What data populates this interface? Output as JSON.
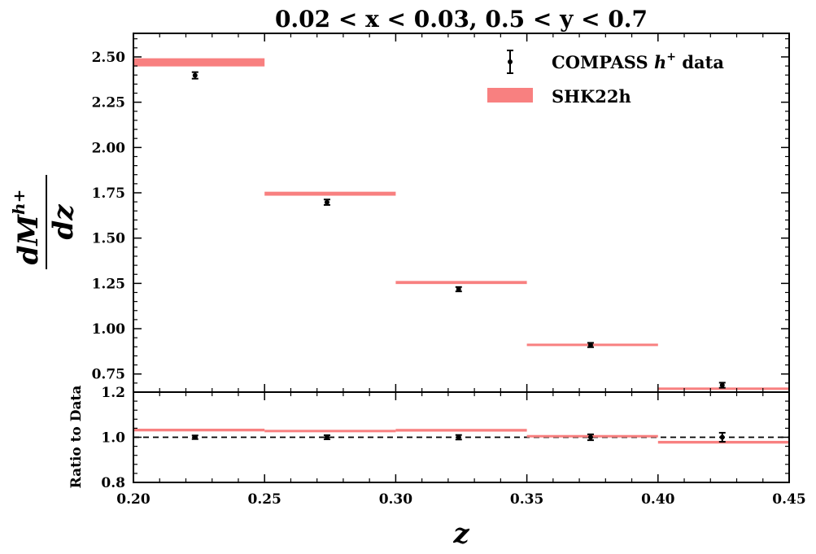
{
  "chart_data": [
    {
      "type": "line",
      "title": "0.02 < x < 0.03, 0.5 < y < 0.7",
      "ylabel": "dM^{h+}/dz",
      "xlim": [
        0.2,
        0.45
      ],
      "ylim": [
        0.65,
        2.63
      ],
      "yticks": [
        "0.75",
        "1.00",
        "1.25",
        "1.50",
        "1.75",
        "2.00",
        "2.25",
        "2.50"
      ],
      "grid": false,
      "legend": {
        "placement": "top-right",
        "entries": [
          "COMPASS h+ data",
          "SHK22h"
        ]
      },
      "series": [
        {
          "name": "COMPASS h+ data",
          "kind": "errorbar",
          "color": "#000000",
          "x": [
            0.2235,
            0.2738,
            0.324,
            0.3743,
            0.4245
          ],
          "y": [
            2.398,
            1.698,
            1.218,
            0.91,
            0.688
          ],
          "yerr": [
            0.018,
            0.015,
            0.012,
            0.012,
            0.014
          ]
        },
        {
          "name": "SHK22h",
          "kind": "band",
          "color": "#f88080",
          "bins": [
            [
              0.2,
              0.25
            ],
            [
              0.25,
              0.3
            ],
            [
              0.3,
              0.35
            ],
            [
              0.35,
              0.4
            ],
            [
              0.4,
              0.45
            ]
          ],
          "y": [
            2.47,
            1.745,
            1.255,
            0.912,
            0.67
          ],
          "thickness": [
            0.045,
            0.022,
            0.017,
            0.011,
            0.011
          ]
        }
      ]
    },
    {
      "type": "line",
      "ylabel": "Ratio to Data",
      "xlabel": "z",
      "xlim": [
        0.2,
        0.45
      ],
      "ylim": [
        0.8,
        1.2
      ],
      "xticks": [
        "0.20",
        "0.25",
        "0.30",
        "0.35",
        "0.40",
        "0.45"
      ],
      "yticks": [
        "0.8",
        "1.0",
        "1.2"
      ],
      "reference_line": 1.0,
      "series": [
        {
          "name": "COMPASS h+ data",
          "kind": "errorbar",
          "color": "#000000",
          "x": [
            0.2235,
            0.2738,
            0.324,
            0.3743,
            0.4245
          ],
          "y": [
            1.0,
            1.0,
            1.0,
            1.0,
            1.0
          ],
          "yerr": [
            0.008,
            0.009,
            0.01,
            0.013,
            0.02
          ]
        },
        {
          "name": "SHK22h",
          "kind": "band",
          "color": "#f88080",
          "bins": [
            [
              0.2,
              0.25
            ],
            [
              0.25,
              0.3
            ],
            [
              0.3,
              0.35
            ],
            [
              0.35,
              0.4
            ],
            [
              0.4,
              0.45
            ]
          ],
          "y": [
            1.032,
            1.028,
            1.031,
            1.005,
            0.978
          ],
          "thickness": [
            0.012,
            0.01,
            0.012,
            0.01,
            0.012
          ]
        }
      ]
    }
  ]
}
